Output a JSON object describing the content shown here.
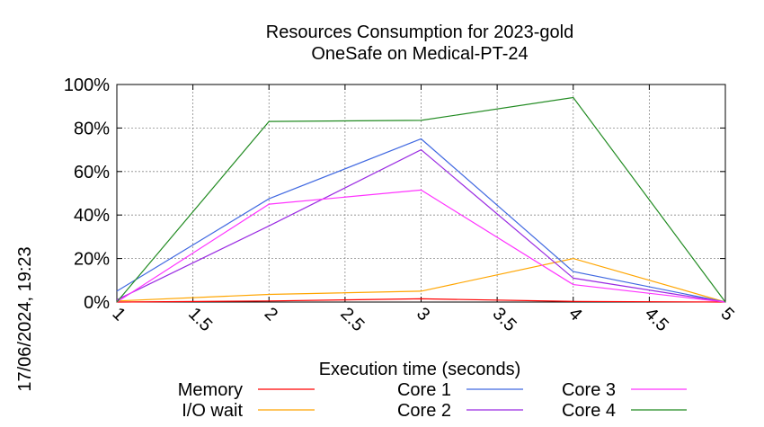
{
  "timestamp": "17/06/2024, 19:23",
  "chart_data": {
    "type": "line",
    "title": "Resources Consumption for 2023-gold",
    "subtitle": "OneSafe on Medical-PT-24",
    "xlabel": "Execution time (seconds)",
    "ylabel": "",
    "xlim": [
      1,
      5
    ],
    "ylim": [
      0,
      100
    ],
    "x_ticks": [
      "1",
      "1.5",
      "2",
      "2.5",
      "3",
      "3.5",
      "4",
      "4.5",
      "5"
    ],
    "y_ticks": [
      "0%",
      "20%",
      "40%",
      "60%",
      "80%",
      "100%"
    ],
    "grid": true,
    "legend_position": "bottom",
    "x": [
      1,
      2,
      3,
      4,
      5
    ],
    "series": [
      {
        "name": "Memory",
        "color": "#ff0000",
        "values": [
          0,
          0.5,
          1.5,
          0.3,
          0
        ]
      },
      {
        "name": "I/O wait",
        "color": "#ffa500",
        "values": [
          0.5,
          3.5,
          5,
          20,
          0
        ]
      },
      {
        "name": "Core 1",
        "color": "#4169e1",
        "values": [
          5,
          47.5,
          75,
          14,
          0
        ]
      },
      {
        "name": "Core 2",
        "color": "#9a2be2",
        "values": [
          1,
          35,
          70,
          11,
          0
        ]
      },
      {
        "name": "Core 3",
        "color": "#ff33ff",
        "values": [
          0,
          45,
          51.5,
          8,
          0
        ]
      },
      {
        "name": "Core 4",
        "color": "#228b22",
        "values": [
          0,
          83,
          83.5,
          94,
          0
        ]
      }
    ]
  }
}
